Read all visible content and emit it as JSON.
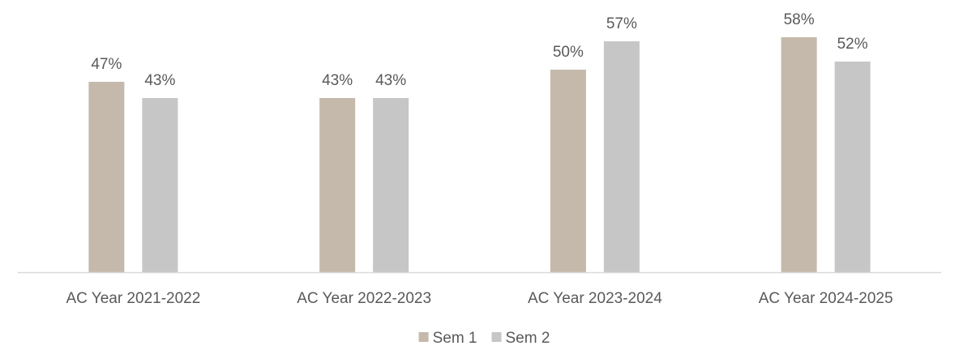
{
  "chart_data": {
    "type": "bar",
    "categories": [
      "AC Year 2021-2022",
      "AC Year 2022-2023",
      "AC Year 2023-2024",
      "AC Year 2024-2025"
    ],
    "series": [
      {
        "name": "Sem 1",
        "values": [
          47,
          43,
          50,
          58
        ],
        "labels": [
          "47%",
          "43%",
          "50%",
          "58%"
        ],
        "color": "#C4B9AB"
      },
      {
        "name": "Sem 2",
        "values": [
          43,
          43,
          57,
          52
        ],
        "labels": [
          "43%",
          "43%",
          "57%",
          "52%"
        ],
        "color": "#C6C6C6"
      }
    ],
    "ylim": [
      0,
      60
    ],
    "grid": false,
    "legend_position": "bottom-center",
    "axis_color": "#D9D9D9",
    "text_color": "#595959"
  }
}
